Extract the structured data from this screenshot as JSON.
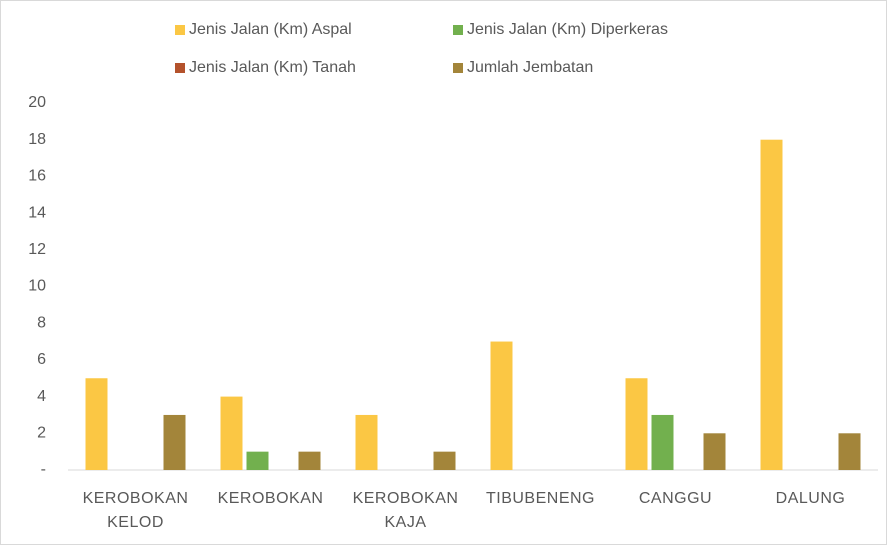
{
  "chart_data": {
    "type": "bar",
    "categories": [
      "KEROBOKAN KELOD",
      "KEROBOKAN",
      "KEROBOKAN KAJA",
      "TIBUBENENG",
      "CANGGU",
      "DALUNG"
    ],
    "series": [
      {
        "name": "Jenis Jalan (Km) Aspal",
        "color": "#fbc744",
        "values": [
          5,
          4,
          3,
          7,
          5,
          18
        ]
      },
      {
        "name": "Jenis Jalan (Km) Diperkeras",
        "color": "#72b04e",
        "values": [
          0,
          1,
          0,
          0,
          3,
          0
        ]
      },
      {
        "name": "Jenis Jalan (Km) Tanah",
        "color": "#b4522c",
        "values": [
          0,
          0,
          0,
          0,
          0,
          0
        ]
      },
      {
        "name": "Jumlah Jembatan",
        "color": "#a3853a",
        "values": [
          3,
          1,
          1,
          0,
          2,
          2
        ]
      }
    ],
    "ylim": [
      0,
      20
    ],
    "yticks": [
      {
        "value": 0,
        "label": "-"
      },
      2,
      4,
      6,
      8,
      10,
      12,
      14,
      16,
      18,
      20
    ],
    "grid": false,
    "legend": "top"
  }
}
